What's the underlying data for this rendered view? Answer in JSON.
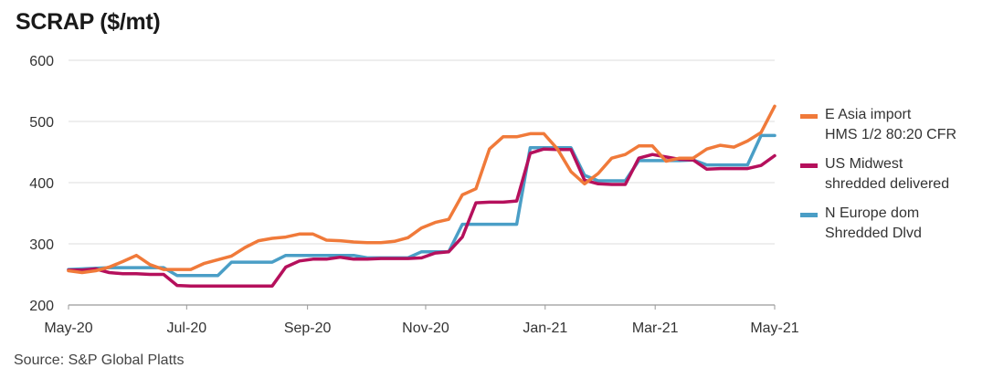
{
  "source": "Source: S&P Global Platts",
  "chart_data": {
    "type": "line",
    "title": "SCRAP ($/mt)",
    "xlabel": "",
    "ylabel": "",
    "ylim": [
      200,
      600
    ],
    "yticks": [
      200,
      300,
      400,
      500,
      600
    ],
    "xlim": [
      0,
      52
    ],
    "xticks": [
      {
        "label": "May-20",
        "x": 0
      },
      {
        "label": "Jul-20",
        "x": 8.7
      },
      {
        "label": "Sep-20",
        "x": 17.6
      },
      {
        "label": "Nov-20",
        "x": 26.3
      },
      {
        "label": "Jan-21",
        "x": 35.1
      },
      {
        "label": "Mar-21",
        "x": 43.2
      },
      {
        "label": "May-21",
        "x": 52
      }
    ],
    "grid": "horizontal",
    "legend_position": "right",
    "series": [
      {
        "name": "E Asia import\nHMS 1/2 80:20 CFR",
        "color": "#F07A3A",
        "points": [
          [
            0,
            256
          ],
          [
            1,
            253
          ],
          [
            2,
            256
          ],
          [
            3,
            262
          ],
          [
            4,
            271
          ],
          [
            5,
            281
          ],
          [
            6,
            266
          ],
          [
            7,
            258
          ],
          [
            8,
            258
          ],
          [
            9,
            258
          ],
          [
            10,
            268
          ],
          [
            11,
            274
          ],
          [
            12,
            280
          ],
          [
            13,
            294
          ],
          [
            14,
            305
          ],
          [
            15,
            309
          ],
          [
            16,
            311
          ],
          [
            17,
            316
          ],
          [
            18,
            316
          ],
          [
            19,
            306
          ],
          [
            20,
            305
          ],
          [
            21,
            303
          ],
          [
            22,
            302
          ],
          [
            23,
            302
          ],
          [
            24,
            304
          ],
          [
            25,
            310
          ],
          [
            26,
            326
          ],
          [
            27,
            335
          ],
          [
            28,
            340
          ],
          [
            29,
            380
          ],
          [
            30,
            390
          ],
          [
            31,
            455
          ],
          [
            32,
            475
          ],
          [
            33,
            475
          ],
          [
            34,
            480
          ],
          [
            35,
            480
          ],
          [
            36,
            455
          ],
          [
            37,
            418
          ],
          [
            38,
            398
          ],
          [
            39,
            415
          ],
          [
            40,
            440
          ],
          [
            41,
            446
          ],
          [
            42,
            460
          ],
          [
            43,
            460
          ],
          [
            44,
            435
          ],
          [
            45,
            440
          ],
          [
            46,
            440
          ],
          [
            47,
            455
          ],
          [
            48,
            461
          ],
          [
            49,
            458
          ],
          [
            50,
            468
          ],
          [
            51,
            482
          ],
          [
            52,
            525
          ]
        ]
      },
      {
        "name": "US Midwest\nshredded delivered",
        "color": "#B5105C",
        "points": [
          [
            0,
            257
          ],
          [
            1,
            257
          ],
          [
            2,
            259
          ],
          [
            3,
            253
          ],
          [
            4,
            251
          ],
          [
            5,
            251
          ],
          [
            6,
            250
          ],
          [
            7,
            250
          ],
          [
            8,
            232
          ],
          [
            9,
            231
          ],
          [
            10,
            231
          ],
          [
            11,
            231
          ],
          [
            12,
            231
          ],
          [
            13,
            231
          ],
          [
            14,
            231
          ],
          [
            15,
            231
          ],
          [
            16,
            262
          ],
          [
            17,
            272
          ],
          [
            18,
            275
          ],
          [
            19,
            275
          ],
          [
            20,
            278
          ],
          [
            21,
            275
          ],
          [
            22,
            275
          ],
          [
            23,
            276
          ],
          [
            24,
            276
          ],
          [
            25,
            276
          ],
          [
            26,
            277
          ],
          [
            27,
            285
          ],
          [
            28,
            287
          ],
          [
            29,
            311
          ],
          [
            30,
            367
          ],
          [
            31,
            368
          ],
          [
            32,
            368
          ],
          [
            33,
            370
          ],
          [
            34,
            448
          ],
          [
            35,
            455
          ],
          [
            36,
            454
          ],
          [
            37,
            454
          ],
          [
            38,
            404
          ],
          [
            39,
            398
          ],
          [
            40,
            397
          ],
          [
            41,
            397
          ],
          [
            42,
            440
          ],
          [
            43,
            446
          ],
          [
            44,
            442
          ],
          [
            45,
            438
          ],
          [
            46,
            437
          ],
          [
            47,
            422
          ],
          [
            48,
            423
          ],
          [
            49,
            423
          ],
          [
            50,
            423
          ],
          [
            51,
            428
          ],
          [
            52,
            444
          ]
        ]
      },
      {
        "name": "N Europe dom\nShredded Dlvd",
        "color": "#4A9EC6",
        "points": [
          [
            0,
            258
          ],
          [
            3,
            261
          ],
          [
            4,
            261
          ],
          [
            7,
            261
          ],
          [
            8,
            248
          ],
          [
            9,
            248
          ],
          [
            11,
            248
          ],
          [
            12,
            270
          ],
          [
            13,
            270
          ],
          [
            15,
            270
          ],
          [
            16,
            281
          ],
          [
            17,
            281
          ],
          [
            21,
            281
          ],
          [
            22,
            277
          ],
          [
            25,
            277
          ],
          [
            26,
            287
          ],
          [
            27,
            287
          ],
          [
            28,
            287
          ],
          [
            29,
            332
          ],
          [
            30,
            332
          ],
          [
            33,
            332
          ],
          [
            34,
            457
          ],
          [
            35,
            457
          ],
          [
            36,
            457
          ],
          [
            37,
            457
          ],
          [
            38,
            412
          ],
          [
            39,
            403
          ],
          [
            40,
            403
          ],
          [
            41,
            403
          ],
          [
            42,
            436
          ],
          [
            43,
            436
          ],
          [
            45,
            436
          ],
          [
            46,
            437
          ],
          [
            47,
            429
          ],
          [
            48,
            429
          ],
          [
            49,
            429
          ],
          [
            50,
            429
          ],
          [
            51,
            477
          ],
          [
            52,
            477
          ]
        ]
      }
    ]
  }
}
